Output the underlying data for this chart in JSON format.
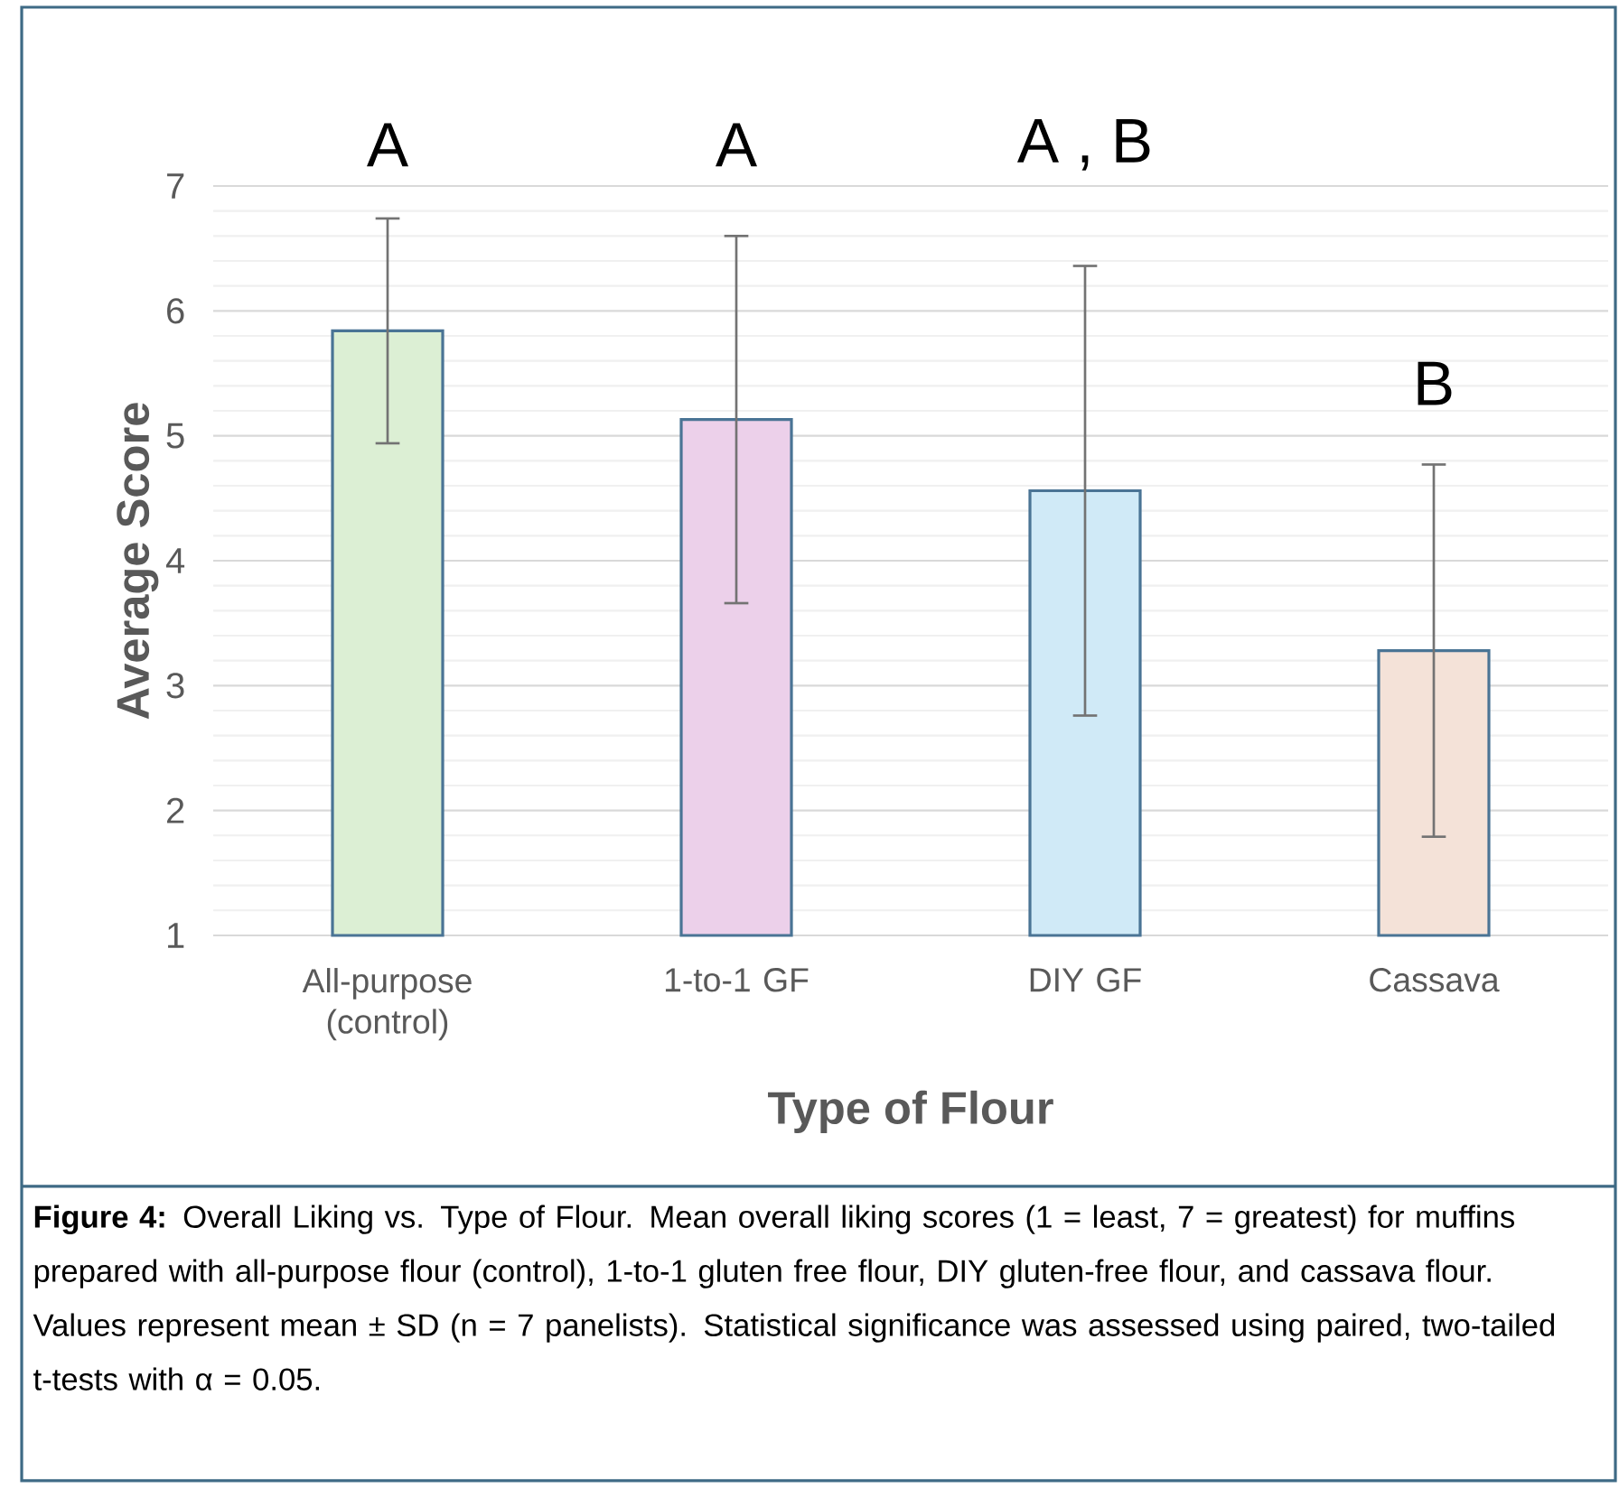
{
  "chart_data": {
    "type": "bar",
    "xlabel": "Type of Flour",
    "ylabel": "Average Score",
    "categories": [
      "All-purpose (control)",
      "1-to-1 GF",
      "DIY GF",
      "Cassava"
    ],
    "values": [
      5.84,
      5.13,
      4.56,
      3.28
    ],
    "errors": [
      0.9,
      1.47,
      1.8,
      1.49
    ],
    "colors": [
      "#dcefd4",
      "#ecd0ea",
      "#d0eaf7",
      "#f4e2d8"
    ],
    "ylim": [
      1,
      7
    ],
    "yticks": [
      1,
      2,
      3,
      4,
      5,
      6,
      7
    ],
    "grid": "y",
    "annotations": [
      "A",
      "A",
      "A , B",
      "B",
      "**Figure 4:** Overall Liking vs. Type of Flour. Mean overall liking scores (1 = least, 7 = greatest) for muffins prepared with all-purpose flour (control), 1-to-1 gluten free flour, DIY gluten-free flour, and cassava flour. Values represent mean ± SD (n = 7 panelists). Statistical significance was assessed using paired, two-tailed t-tests with α = 0.05."
    ]
  }
}
